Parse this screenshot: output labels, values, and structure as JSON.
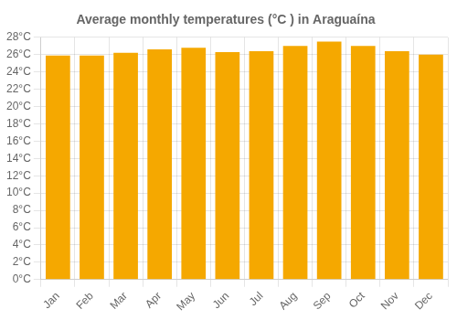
{
  "chart_data": {
    "type": "bar",
    "title": "Average monthly temperatures (°C ) in Araguaína",
    "categories": [
      "Jan",
      "Feb",
      "Mar",
      "Apr",
      "May",
      "Jun",
      "Jul",
      "Aug",
      "Sep",
      "Oct",
      "Nov",
      "Dec"
    ],
    "values": [
      25.9,
      25.9,
      26.2,
      26.6,
      26.8,
      26.3,
      26.4,
      27.0,
      27.5,
      27.0,
      26.4,
      26.0
    ],
    "color": "#F5A800",
    "ylim": [
      0,
      28
    ],
    "yticks": [
      {
        "value": 0,
        "label": "0°C"
      },
      {
        "value": 2,
        "label": "2°C"
      },
      {
        "value": 4,
        "label": "4°C"
      },
      {
        "value": 6,
        "label": "6°C"
      },
      {
        "value": 8,
        "label": "8°C"
      },
      {
        "value": 10,
        "label": "10°C"
      },
      {
        "value": 12,
        "label": "12°C"
      },
      {
        "value": 14,
        "label": "14°C"
      },
      {
        "value": 16,
        "label": "16°C"
      },
      {
        "value": 18,
        "label": "18°C"
      },
      {
        "value": 20,
        "label": "20°C"
      },
      {
        "value": 22,
        "label": "22°C"
      },
      {
        "value": 24,
        "label": "24°C"
      },
      {
        "value": 26,
        "label": "26°C"
      },
      {
        "value": 28,
        "label": "28°C"
      }
    ],
    "grid": true
  }
}
